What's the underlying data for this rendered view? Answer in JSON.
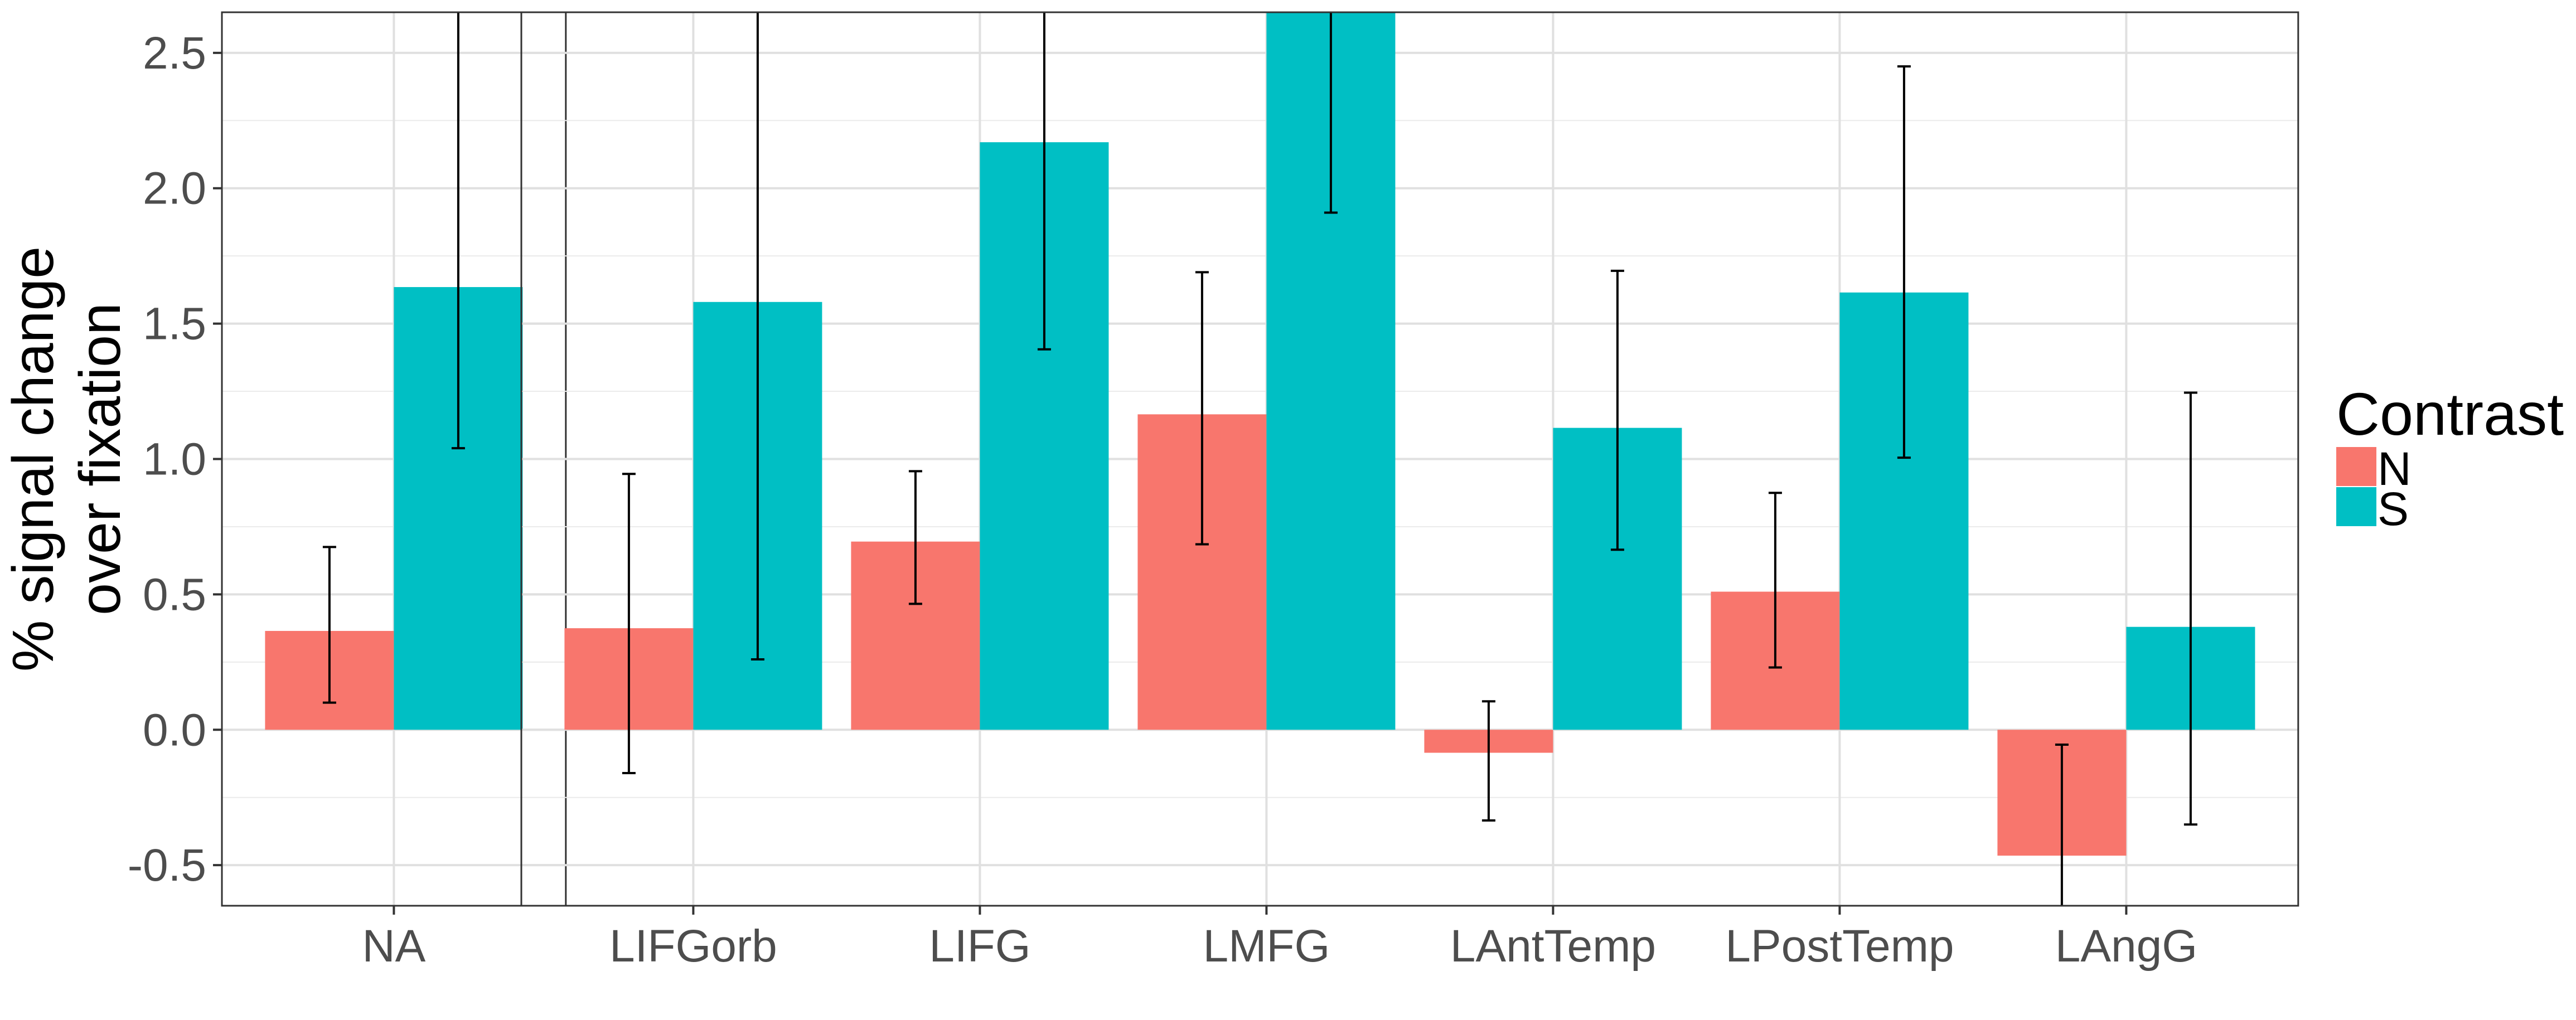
{
  "chart_data": {
    "type": "bar",
    "ylabel_lines": [
      "% signal change",
      "over fixation"
    ],
    "ylim": [
      -0.65,
      2.65
    ],
    "y_ticks": [
      -0.5,
      0.0,
      0.5,
      1.0,
      1.5,
      2.0,
      2.5
    ],
    "y_tick_labels": [
      "-0.5",
      "0.0",
      "0.5",
      "1.0",
      "1.5",
      "2.0",
      "2.5"
    ],
    "legend": {
      "title": "Contrast",
      "position": "right"
    },
    "grid": true,
    "series": [
      {
        "name": "N",
        "color": "#F8766D"
      },
      {
        "name": "S",
        "color": "#00BFC4"
      }
    ],
    "panels": [
      {
        "categories": [
          "NA"
        ],
        "values": {
          "N": [
            0.365
          ],
          "S": [
            1.635
          ]
        },
        "errors": {
          "N": [
            [
              0.1,
              0.675
            ]
          ],
          "S": [
            [
              1.04,
              2.65
            ]
          ]
        }
      },
      {
        "categories": [
          "LIFGorb",
          "LIFG",
          "LMFG",
          "LAntTemp",
          "LPostTemp",
          "LAngG"
        ],
        "values": {
          "N": [
            0.375,
            0.695,
            1.165,
            -0.085,
            0.51,
            -0.465
          ],
          "S": [
            1.58,
            2.17,
            2.65,
            1.115,
            1.615,
            0.38
          ]
        },
        "errors": {
          "N": [
            [
              -0.16,
              0.945
            ],
            [
              0.465,
              0.955
            ],
            [
              0.685,
              1.69
            ],
            [
              -0.335,
              0.105
            ],
            [
              0.23,
              0.875
            ],
            [
              -0.65,
              -0.055
            ]
          ],
          "S": [
            [
              0.26,
              2.65
            ],
            [
              1.405,
              2.65
            ],
            [
              1.91,
              2.65
            ],
            [
              0.665,
              1.695
            ],
            [
              1.005,
              2.45
            ],
            [
              -0.35,
              1.245
            ]
          ]
        }
      }
    ]
  }
}
